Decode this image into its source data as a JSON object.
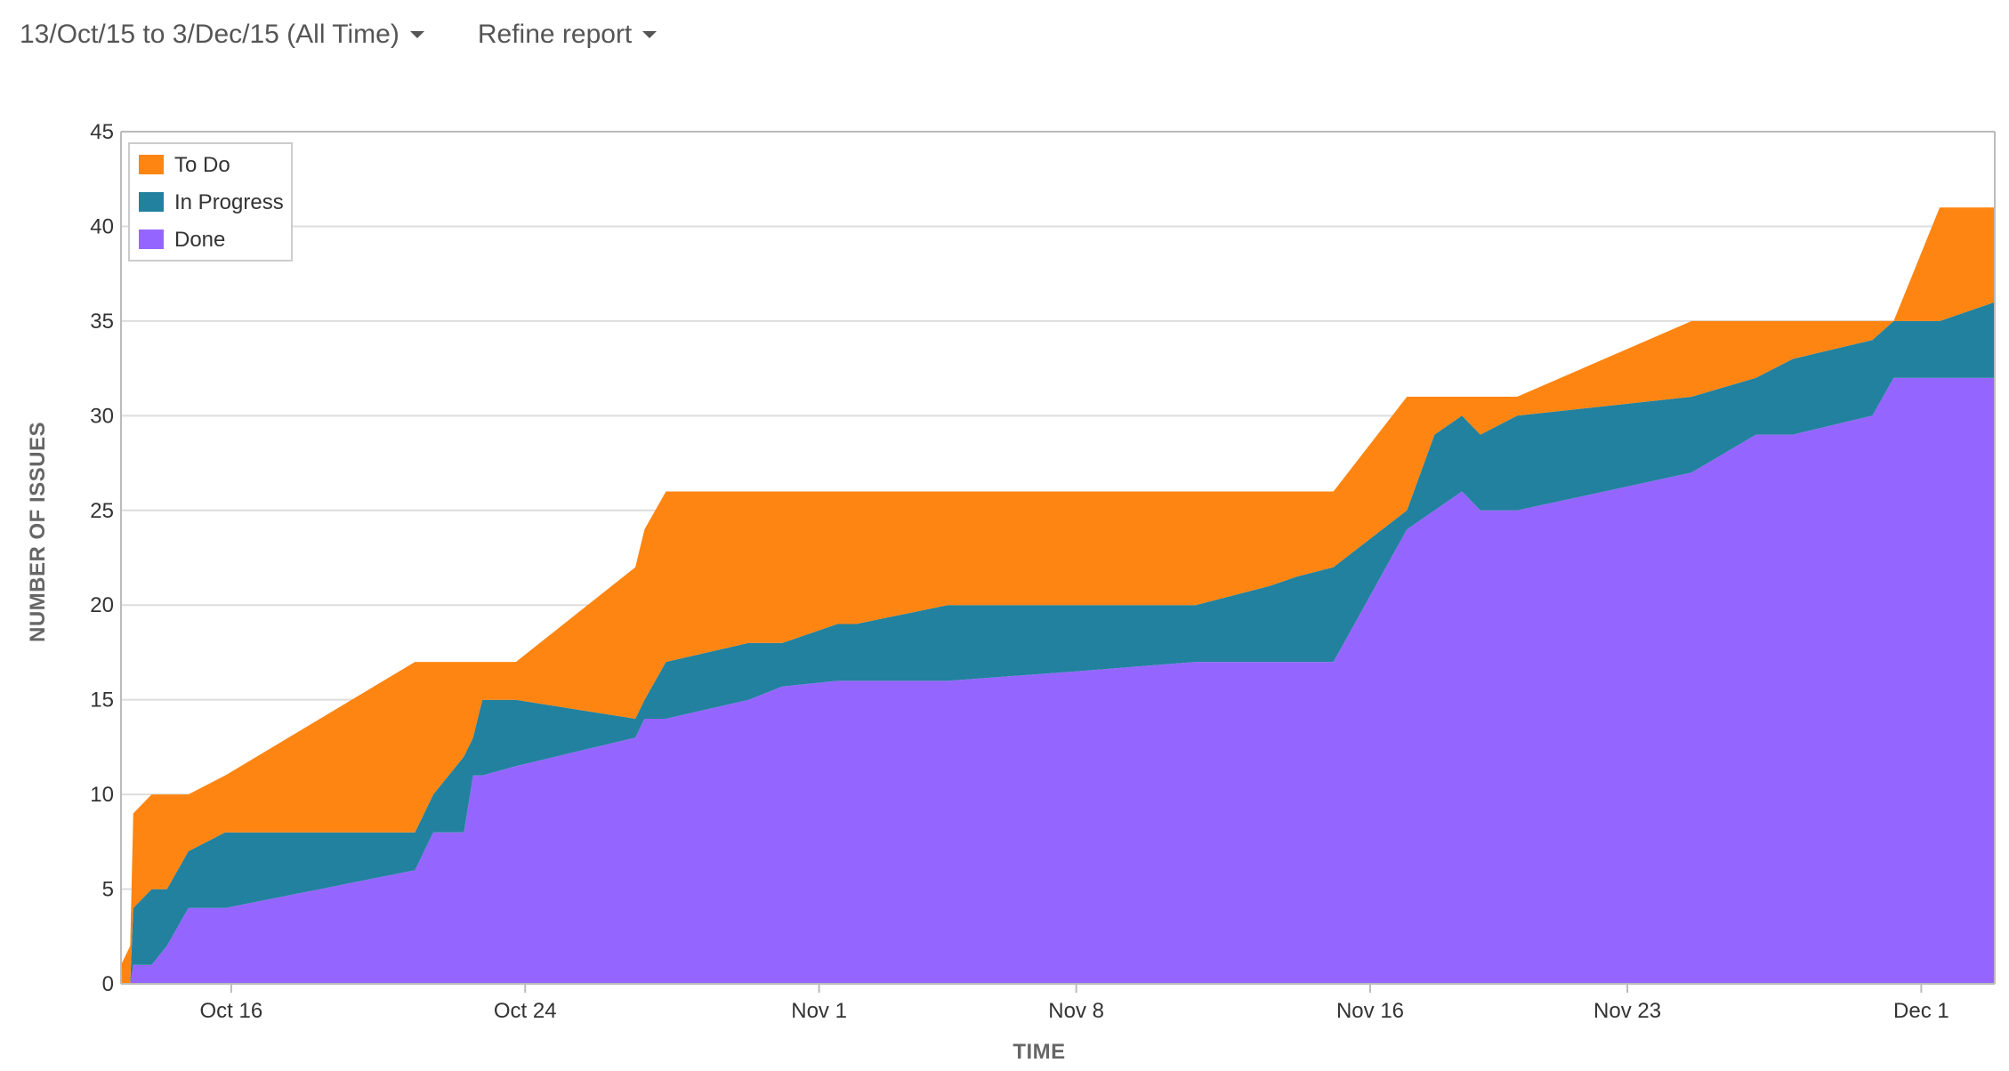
{
  "toolbar": {
    "date_range_label": "13/Oct/15 to 3/Dec/15 (All Time)",
    "refine_label": "Refine report"
  },
  "colors": {
    "todo": "#ff8512",
    "in_progress": "#22819e",
    "done": "#9566ff",
    "grid": "#dddddd",
    "axis": "#bbbbbb"
  },
  "chart_data": {
    "type": "area",
    "stacked": true,
    "xlabel": "TIME",
    "ylabel": "NUMBER OF ISSUES",
    "ylim": [
      0,
      45
    ],
    "yticks": [
      0,
      5,
      10,
      15,
      20,
      25,
      30,
      35,
      40,
      45
    ],
    "xlim": [
      "2015-10-13",
      "2015-12-03"
    ],
    "xticks": [
      {
        "date": "2015-10-16",
        "label": "Oct 16"
      },
      {
        "date": "2015-10-24",
        "label": "Oct 24"
      },
      {
        "date": "2015-11-01",
        "label": "Nov 1"
      },
      {
        "date": "2015-11-08",
        "label": "Nov 8"
      },
      {
        "date": "2015-11-16",
        "label": "Nov 16"
      },
      {
        "date": "2015-11-23",
        "label": "Nov 23"
      },
      {
        "date": "2015-12-01",
        "label": "Dec 1"
      }
    ],
    "grid": true,
    "legend_position": "top-left",
    "legend": [
      "To Do",
      "In Progress",
      "Done"
    ],
    "x": [
      "2015-10-13",
      "2015-10-13 06:00",
      "2015-10-13 08:00",
      "2015-10-13 20:00",
      "2015-10-14 06:00",
      "2015-10-14 20:00",
      "2015-10-15 20:00",
      "2015-10-21",
      "2015-10-21 12:00",
      "2015-10-22 08:00",
      "2015-10-22 14:00",
      "2015-10-22 20:00",
      "2015-10-23 18:00",
      "2015-10-27",
      "2015-10-27 06:00",
      "2015-10-27 20:00",
      "2015-10-30 02:00",
      "2015-10-31",
      "2015-11-01 12:00",
      "2015-11-02",
      "2015-11-04 12:00",
      "2015-11-08",
      "2015-11-11 06:00",
      "2015-11-13 06:00",
      "2015-11-14",
      "2015-11-15",
      "2015-11-17",
      "2015-11-17 18:00",
      "2015-11-18 12:00",
      "2015-11-19",
      "2015-11-20",
      "2015-11-24 18:00",
      "2015-11-26 12:00",
      "2015-11-27 12:00",
      "2015-11-29 16:00",
      "2015-11-30 06:00",
      "2015-12-01 12:00",
      "2015-12-03"
    ],
    "series": [
      {
        "name": "Done",
        "values": [
          0,
          0,
          1,
          1,
          2,
          4,
          4,
          6,
          8,
          8,
          11,
          11,
          11.5,
          13,
          14,
          14,
          15,
          15.7,
          16,
          16,
          16,
          16.5,
          17,
          17,
          17,
          17,
          24,
          25,
          26,
          25,
          25,
          27,
          29,
          29,
          30,
          32,
          32,
          32
        ]
      },
      {
        "name": "In Progress",
        "values": [
          0,
          0,
          3,
          4,
          3,
          3,
          4,
          2,
          2,
          4,
          2,
          4,
          3.5,
          1,
          1,
          3,
          3,
          2.3,
          3,
          3,
          4,
          3.5,
          3,
          4,
          4.5,
          5,
          1,
          4,
          4,
          4,
          5,
          4,
          3,
          4,
          4,
          3,
          3,
          4
        ]
      },
      {
        "name": "To Do",
        "values": [
          1,
          2,
          5,
          5,
          5,
          3,
          3,
          9,
          7,
          5,
          4,
          2,
          2,
          8,
          9,
          9,
          8,
          8,
          7,
          7,
          6,
          6,
          6,
          5,
          4.5,
          4,
          6,
          2,
          1,
          2,
          1,
          4,
          3,
          2,
          1,
          0,
          6,
          5
        ]
      }
    ]
  }
}
